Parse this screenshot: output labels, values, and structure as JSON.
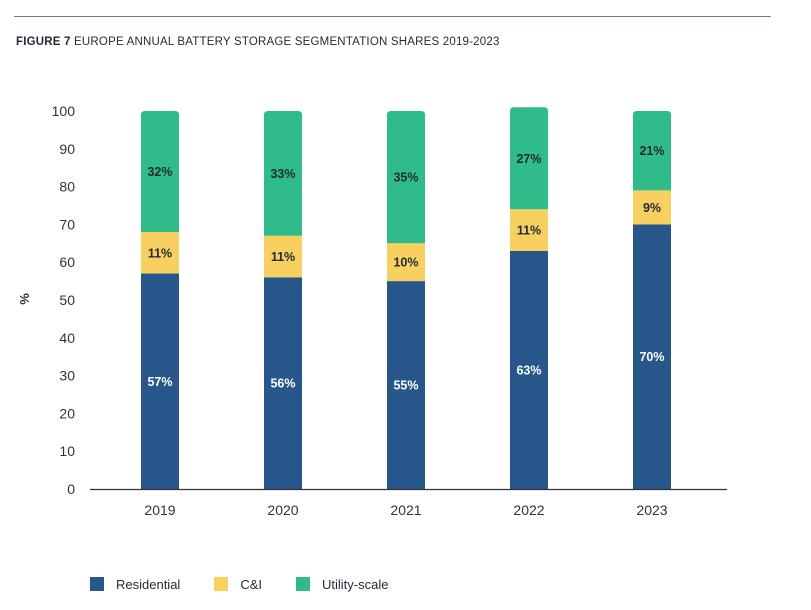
{
  "title": {
    "prefix": "FIGURE 7",
    "text": "EUROPE ANNUAL BATTERY STORAGE SEGMENTATION SHARES 2019-2023"
  },
  "colors": {
    "residential": "#27568a",
    "ci": "#f7d060",
    "utility": "#2fbb8a"
  },
  "chart_data": {
    "type": "bar",
    "stacked": true,
    "categories": [
      "2019",
      "2020",
      "2021",
      "2022",
      "2023"
    ],
    "series": [
      {
        "name": "Residential",
        "key": "residential",
        "values": [
          57,
          56,
          55,
          63,
          70
        ],
        "labels": [
          "57%",
          "56%",
          "55%",
          "63%",
          "70%"
        ]
      },
      {
        "name": "C&I",
        "key": "ci",
        "values": [
          11,
          11,
          10,
          11,
          9
        ],
        "labels": [
          "11%",
          "11%",
          "10%",
          "11%",
          "9%"
        ]
      },
      {
        "name": "Utility-scale",
        "key": "utility",
        "values": [
          32,
          33,
          35,
          27,
          21
        ],
        "labels": [
          "32%",
          "33%",
          "35%",
          "27%",
          "21%"
        ]
      }
    ],
    "ylabel": "%",
    "xlabel": "",
    "ylim": [
      0,
      100
    ],
    "yticks": [
      "0",
      "10",
      "20",
      "30",
      "40",
      "50",
      "60",
      "70",
      "80",
      "90",
      "100"
    ],
    "grid": false,
    "legend_position": "bottom-left"
  }
}
